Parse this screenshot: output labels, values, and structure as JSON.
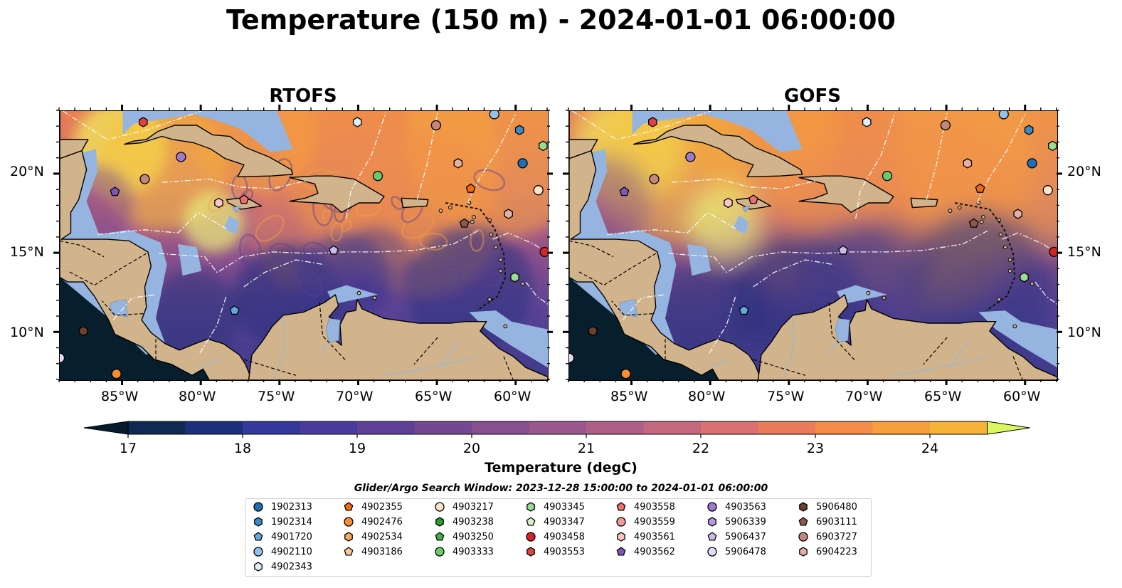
{
  "figure": {
    "title": "Temperature (150 m) - 2024-01-01 06:00:00"
  },
  "panels": [
    {
      "title": "RTOFS"
    },
    {
      "title": "GOFS"
    }
  ],
  "axes": {
    "lat_labels": [
      "20°N",
      "15°N",
      "10°N"
    ],
    "lon_labels": [
      "85°W",
      "80°W",
      "75°W",
      "70°W",
      "65°W",
      "60°W"
    ],
    "lon_range": [
      -89,
      -58
    ],
    "lat_range": [
      7,
      24
    ]
  },
  "colorbar": {
    "label": "Temperature (degC)",
    "ticks": [
      "17",
      "18",
      "19",
      "20",
      "21",
      "22",
      "23",
      "24"
    ],
    "range": [
      16.75,
      24.5
    ],
    "step": 0.5,
    "extend": "both",
    "colors": [
      "#061c2c",
      "#0f2a52",
      "#1d2f7c",
      "#33389a",
      "#4a3a9b",
      "#5e4196",
      "#744890",
      "#874f8e",
      "#9a578e",
      "#ae5f88",
      "#c3687d",
      "#d8716f",
      "#e97c5b",
      "#f38c48",
      "#f59f3d",
      "#f5b338",
      "#f0c93f",
      "#e9e352",
      "#d9f85f"
    ]
  },
  "legend": {
    "title": "Glider/Argo Search Window: 2023-12-28 15:00:00 to 2024-01-01 06:00:00",
    "columns": [
      [
        {
          "id": "1902313",
          "marker": "circle",
          "color": "#1f6fb4"
        },
        {
          "id": "1902314",
          "marker": "hexagon",
          "color": "#3f8ac4"
        },
        {
          "id": "4901720",
          "marker": "pentagon",
          "color": "#64a8de"
        },
        {
          "id": "4902110",
          "marker": "circle",
          "color": "#92c2ea"
        },
        {
          "id": "4902343",
          "marker": "hexagon",
          "color": "#dff0fb"
        }
      ],
      [
        {
          "id": "4902355",
          "marker": "pentagon",
          "color": "#ef6c10"
        },
        {
          "id": "4902476",
          "marker": "circle",
          "color": "#f68e33"
        },
        {
          "id": "4902534",
          "marker": "hexagon",
          "color": "#f9a860"
        },
        {
          "id": "4903186",
          "marker": "pentagon",
          "color": "#fcc995"
        }
      ],
      [
        {
          "id": "4903217",
          "marker": "circle",
          "color": "#fde3c9"
        },
        {
          "id": "4903238",
          "marker": "hexagon",
          "color": "#27a02d"
        },
        {
          "id": "4903250",
          "marker": "pentagon",
          "color": "#3fb34a"
        },
        {
          "id": "4903333",
          "marker": "circle",
          "color": "#6acb6a"
        }
      ],
      [
        {
          "id": "4903345",
          "marker": "hexagon",
          "color": "#9bdc94"
        },
        {
          "id": "4903347",
          "marker": "pentagon",
          "color": "#d4f3cd"
        },
        {
          "id": "4903458",
          "marker": "circle",
          "color": "#d42426"
        },
        {
          "id": "4903553",
          "marker": "hexagon",
          "color": "#e04545"
        }
      ],
      [
        {
          "id": "4903558",
          "marker": "pentagon",
          "color": "#ec6e6e"
        },
        {
          "id": "4903559",
          "marker": "circle",
          "color": "#f29a9a"
        },
        {
          "id": "4903561",
          "marker": "hexagon",
          "color": "#fac6c6"
        },
        {
          "id": "4903562",
          "marker": "pentagon",
          "color": "#7b58b8"
        }
      ],
      [
        {
          "id": "4903563",
          "marker": "circle",
          "color": "#9b7ad0"
        },
        {
          "id": "5906339",
          "marker": "hexagon",
          "color": "#b59ae0"
        },
        {
          "id": "5906437",
          "marker": "pentagon",
          "color": "#cdb9ec"
        },
        {
          "id": "5906478",
          "marker": "circle",
          "color": "#e6dbf7"
        }
      ],
      [
        {
          "id": "5906480",
          "marker": "hexagon",
          "color": "#6b3e2e"
        },
        {
          "id": "6903111",
          "marker": "pentagon",
          "color": "#8b5a4a"
        },
        {
          "id": "6903727",
          "marker": "circle",
          "color": "#c3877a"
        },
        {
          "id": "6904223",
          "marker": "hexagon",
          "color": "#e3b0a3"
        }
      ]
    ]
  },
  "floats": [
    {
      "id": "4903553",
      "marker": "hexagon",
      "color": "#e04545",
      "lon": -83.7,
      "lat": 23.3
    },
    {
      "id": "4903563",
      "marker": "circle",
      "color": "#9b7ad0",
      "lon": -81.3,
      "lat": 21.1
    },
    {
      "id": "6903727",
      "marker": "circle",
      "color": "#c3877a",
      "lon": -83.6,
      "lat": 19.7
    },
    {
      "id": "4903562",
      "marker": "pentagon",
      "color": "#7b58b8",
      "lon": -85.5,
      "lat": 18.9
    },
    {
      "id": "4902343",
      "marker": "hexagon",
      "color": "#dff0fb",
      "lon": -70.1,
      "lat": 23.3
    },
    {
      "id": "6903727",
      "marker": "circle",
      "color": "#c3877a",
      "lon": -65.1,
      "lat": 23.1
    },
    {
      "id": "4902110",
      "marker": "circle",
      "color": "#92c2ea",
      "lon": -61.4,
      "lat": 23.8
    },
    {
      "id": "1902314",
      "marker": "hexagon",
      "color": "#3f8ac4",
      "lon": -59.8,
      "lat": 22.8
    },
    {
      "id": "4903345",
      "marker": "hexagon",
      "color": "#9bdc94",
      "lon": -58.3,
      "lat": 21.8
    },
    {
      "id": "6904223",
      "marker": "hexagon",
      "color": "#e3b0a3",
      "lon": -63.7,
      "lat": 20.7
    },
    {
      "id": "1902313",
      "marker": "circle",
      "color": "#1f6fb4",
      "lon": -59.6,
      "lat": 20.7
    },
    {
      "id": "4903333",
      "marker": "circle",
      "color": "#6acb6a",
      "lon": -68.8,
      "lat": 19.9
    },
    {
      "id": "4902355",
      "marker": "pentagon",
      "color": "#ef6c10",
      "lon": -62.9,
      "lat": 19.1
    },
    {
      "id": "4903217",
      "marker": "circle",
      "color": "#fde3c9",
      "lon": -58.6,
      "lat": 19.0
    },
    {
      "id": "4903561",
      "marker": "hexagon",
      "color": "#fac6c6",
      "lon": -78.9,
      "lat": 18.2
    },
    {
      "id": "4903558",
      "marker": "pentagon",
      "color": "#ec6e6e",
      "lon": -77.3,
      "lat": 18.4
    },
    {
      "id": "6904223",
      "marker": "hexagon",
      "color": "#e3b0a3",
      "lon": -60.5,
      "lat": 17.5
    },
    {
      "id": "6903111",
      "marker": "pentagon",
      "color": "#8b5a4a",
      "lon": -63.3,
      "lat": 16.9
    },
    {
      "id": "5906437",
      "marker": "pentagon",
      "color": "#cdb9ec",
      "lon": -71.6,
      "lat": 15.2
    },
    {
      "id": "4903458",
      "marker": "circle",
      "color": "#d42426",
      "lon": -58.2,
      "lat": 15.1
    },
    {
      "id": "4903345",
      "marker": "hexagon",
      "color": "#9bdc94",
      "lon": -60.1,
      "lat": 13.5
    },
    {
      "id": "4901720",
      "marker": "pentagon",
      "color": "#64a8de",
      "lon": -77.9,
      "lat": 11.4
    },
    {
      "id": "5906480",
      "marker": "hexagon",
      "color": "#6b3e2e",
      "lon": -87.5,
      "lat": 10.1
    },
    {
      "id": "4902476",
      "marker": "circle",
      "color": "#f68e33",
      "lon": -85.4,
      "lat": 7.4
    },
    {
      "id": "5906478",
      "marker": "circle",
      "color": "#e6dbf7",
      "lon": -89.0,
      "lat": 8.4
    }
  ]
}
